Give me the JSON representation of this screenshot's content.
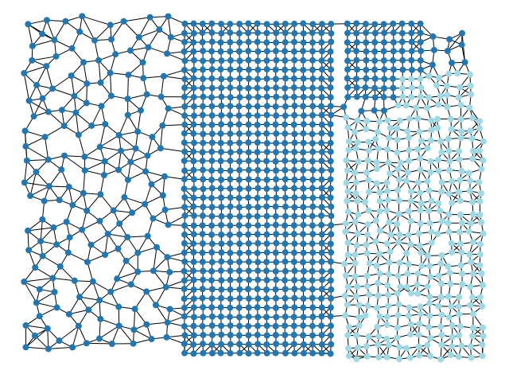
{
  "graph": {
    "node_colors": [
      "#1f77b4",
      "#9edae5"
    ],
    "edge_color": "#000000"
  }
}
